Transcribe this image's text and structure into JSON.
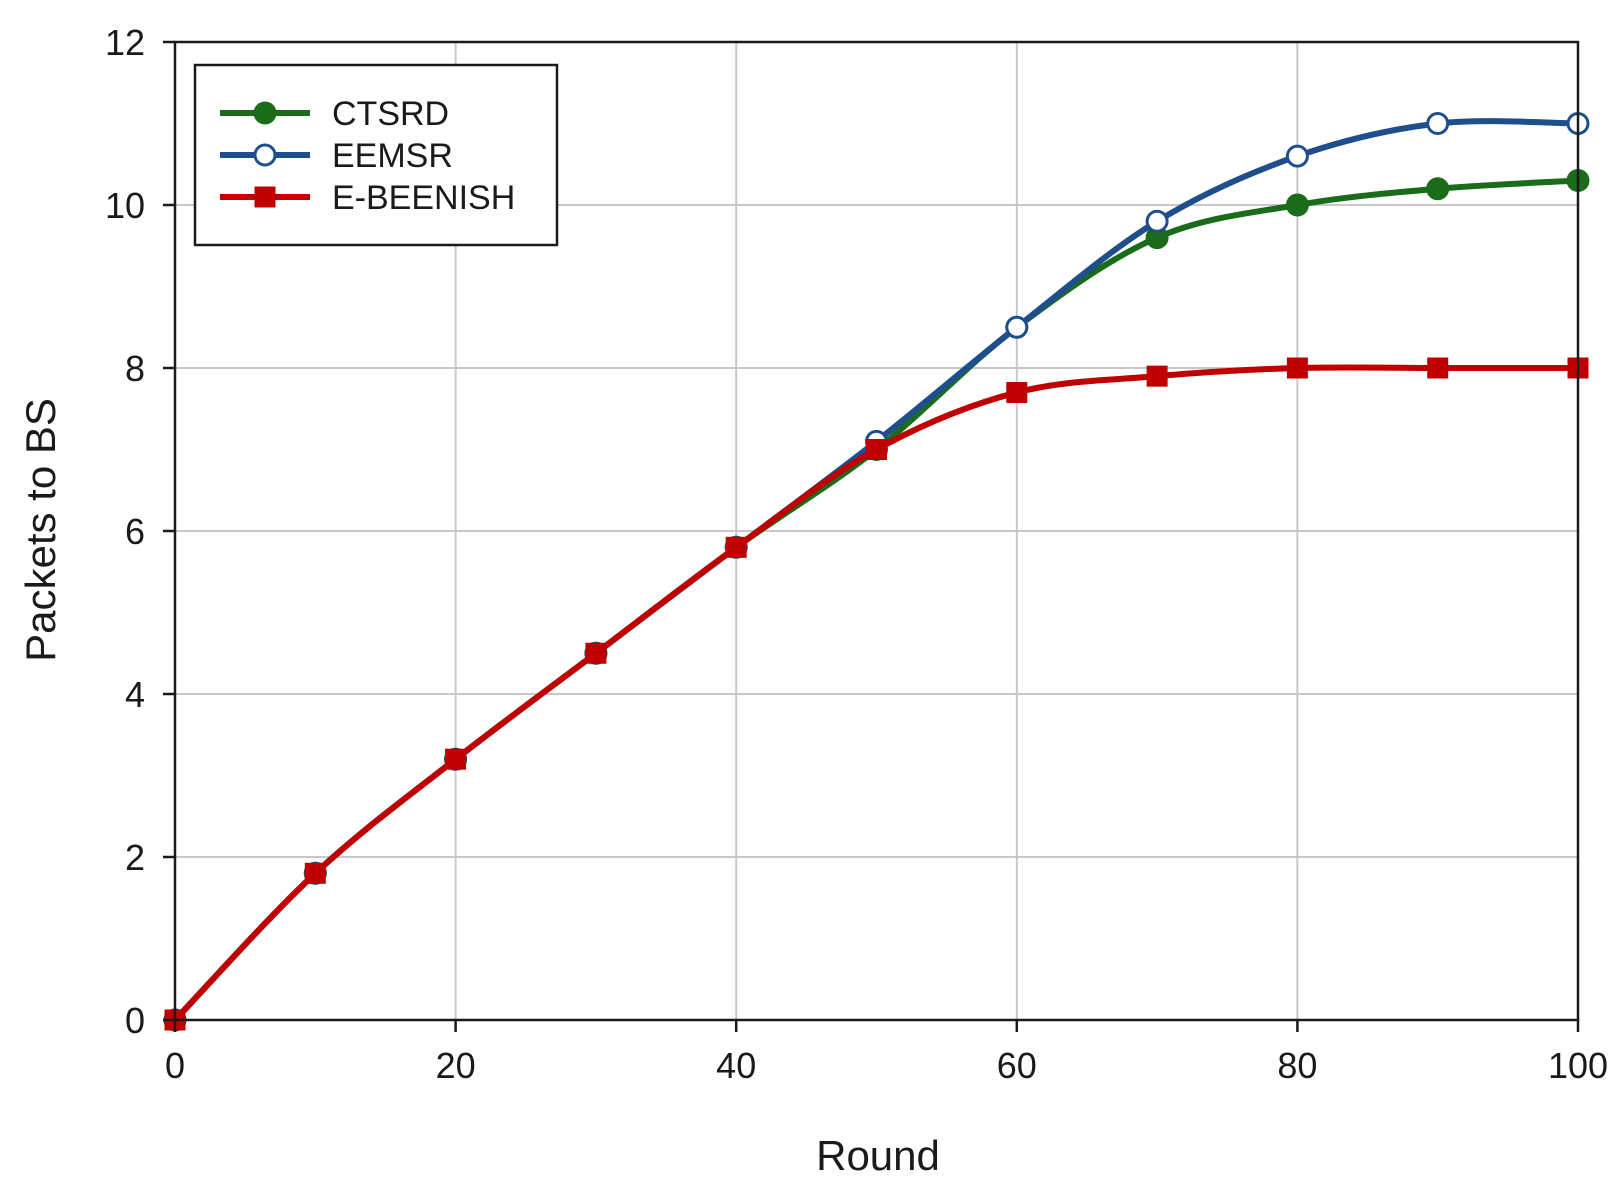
{
  "chart_data": {
    "type": "line",
    "title": "",
    "xlabel": "Round",
    "ylabel": "Packets to BS",
    "xlim": [
      0,
      100
    ],
    "ylim": [
      0,
      12
    ],
    "xticks": [
      0,
      20,
      40,
      60,
      80,
      100
    ],
    "yticks": [
      0,
      2,
      4,
      6,
      8,
      10,
      12
    ],
    "grid": true,
    "legend_position": "top-left",
    "x": [
      0,
      10,
      20,
      30,
      40,
      50,
      60,
      70,
      80,
      90,
      100
    ],
    "series": [
      {
        "name": "CTSRD",
        "color": "#1a6b1a",
        "marker": "filled-circle",
        "values": [
          0,
          1.8,
          3.2,
          4.5,
          5.8,
          7.0,
          8.5,
          9.6,
          10.0,
          10.2,
          10.3
        ]
      },
      {
        "name": "EEMSR",
        "color": "#1f4e8c",
        "marker": "open-circle",
        "values": [
          0,
          1.8,
          3.2,
          4.5,
          5.8,
          7.1,
          8.5,
          9.8,
          10.6,
          11.0,
          11.0
        ]
      },
      {
        "name": "E-BEENISH",
        "color": "#c00000",
        "marker": "filled-square",
        "values": [
          0,
          1.8,
          3.2,
          4.5,
          5.8,
          7.0,
          7.7,
          7.9,
          8.0,
          8.0,
          8.0
        ]
      }
    ]
  }
}
